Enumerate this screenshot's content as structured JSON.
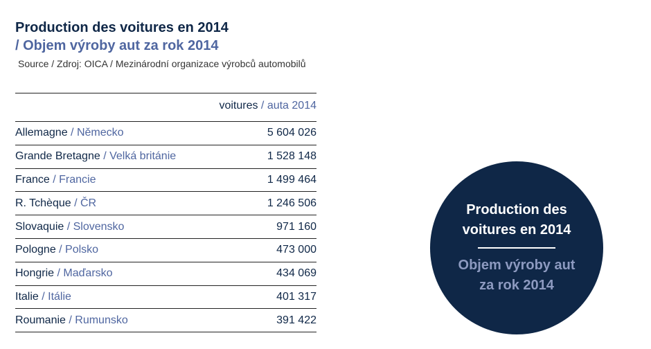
{
  "title": "Production des voitures en 2014",
  "subtitle": "/ Objem výroby aut za rok 2014",
  "source": "Source / Zdroj: OICA / Mezinárodní organizace výrobců automobilů",
  "colors": {
    "primary": "#0f2747",
    "secondary": "#4f66a0"
  },
  "circle": {
    "line1": "Production des",
    "line2": "voitures en 2014",
    "line3": "Objem výroby aut",
    "line4": "za rok 2014"
  },
  "chart_data": {
    "type": "table",
    "title": "Production des voitures en 2014 / Objem výroby aut za rok 2014",
    "header": {
      "fr": "voitures",
      "cz": "/ auta 2014"
    },
    "icon": "car-icon",
    "icon_unit": 1000000,
    "rows": [
      {
        "fr": "Allemagne",
        "cz": " / Německo",
        "value_text": "5 604 026",
        "value": 5604026
      },
      {
        "fr": "Grande Bretagne",
        "cz": " / Velká británie",
        "value_text": "1 528 148",
        "value": 1528148
      },
      {
        "fr": "France",
        "cz": " / Francie",
        "value_text": "1 499 464",
        "value": 1499464
      },
      {
        "fr": "R. Tchèque",
        "cz": " / ČR",
        "value_text": "1 246 506",
        "value": 1246506
      },
      {
        "fr": "Slovaquie",
        "cz": " / Slovensko",
        "value_text": "971 160",
        "value": 971160
      },
      {
        "fr": "Pologne",
        "cz": " / Polsko",
        "value_text": "473 000",
        "value": 473000
      },
      {
        "fr": "Hongrie",
        "cz": " / Maďarsko",
        "value_text": "434 069",
        "value": 434069
      },
      {
        "fr": "Italie",
        "cz": " / Itálie",
        "value_text": "401 317",
        "value": 401317
      },
      {
        "fr": "Roumanie",
        "cz": " / Rumunsko",
        "value_text": "391 422",
        "value": 391422
      }
    ]
  }
}
